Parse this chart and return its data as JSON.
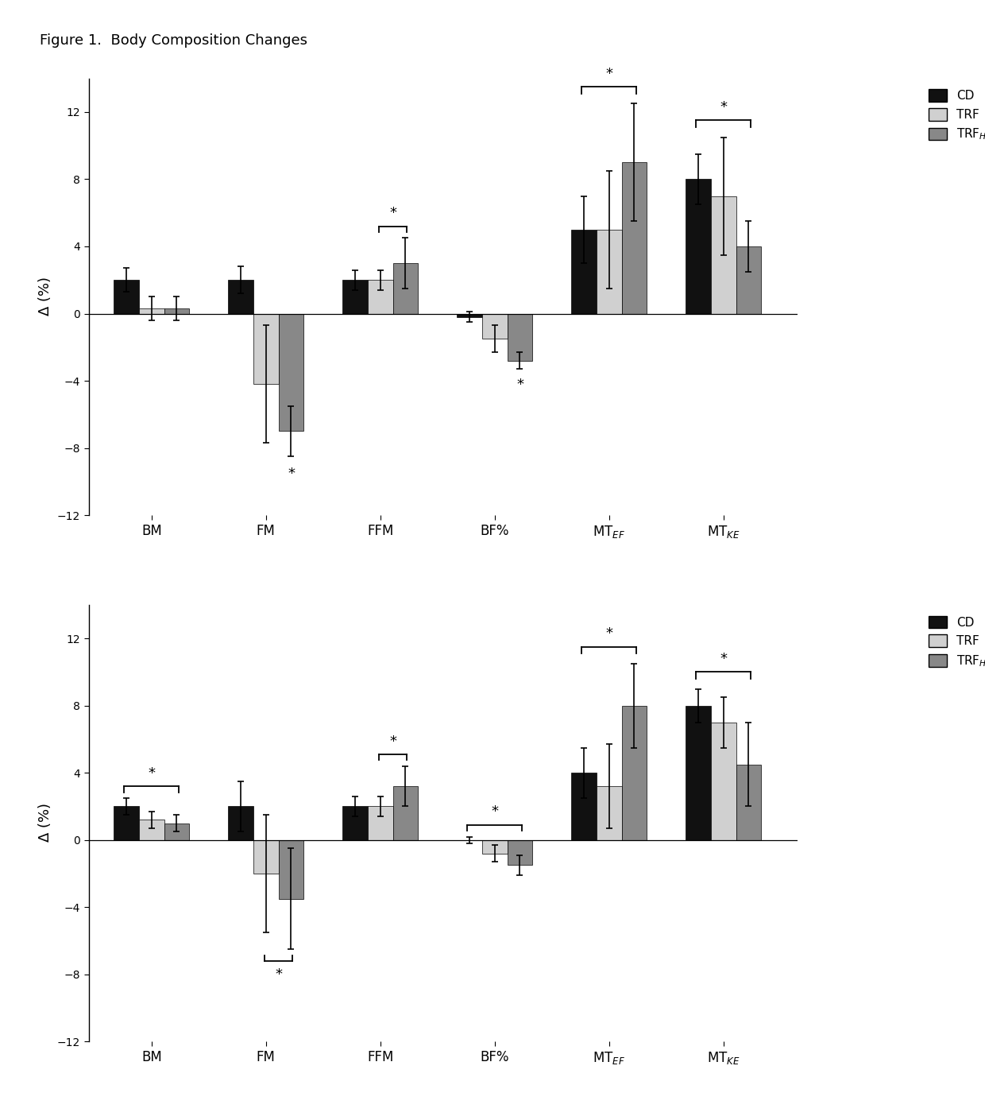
{
  "title": "Figure 1.  Body Composition Changes",
  "top": {
    "CD_vals": [
      2.0,
      2.0,
      2.0,
      -0.2,
      5.0,
      8.0
    ],
    "TRF_vals": [
      0.3,
      -4.2,
      2.0,
      -1.5,
      5.0,
      7.0
    ],
    "TRFHMB_vals": [
      0.3,
      -7.0,
      3.0,
      -2.8,
      9.0,
      4.0
    ],
    "CD_err": [
      0.7,
      0.8,
      0.6,
      0.3,
      2.0,
      1.5
    ],
    "TRF_err": [
      0.7,
      3.5,
      0.6,
      0.8,
      3.5,
      3.5
    ],
    "TRFHMB_err": [
      0.7,
      1.5,
      1.5,
      0.5,
      3.5,
      1.5
    ],
    "sig_star_fm_below": true,
    "sig_star_bf_below": true,
    "bracket_ffm_top": true,
    "bracket_mte_top": true,
    "bracket_mtke_top": true
  },
  "bottom": {
    "CD_vals": [
      2.0,
      2.0,
      2.0,
      0.0,
      4.0,
      8.0
    ],
    "TRF_vals": [
      1.2,
      -2.0,
      2.0,
      -0.8,
      3.2,
      7.0
    ],
    "TRFHMB_vals": [
      1.0,
      -3.5,
      3.2,
      -1.5,
      8.0,
      4.5
    ],
    "CD_err": [
      0.5,
      1.5,
      0.6,
      0.2,
      1.5,
      1.0
    ],
    "TRF_err": [
      0.5,
      3.5,
      0.6,
      0.5,
      2.5,
      1.5
    ],
    "TRFHMB_err": [
      0.5,
      3.0,
      1.2,
      0.6,
      2.5,
      2.5
    ],
    "bracket_bm_top": true,
    "bracket_fm_below": true,
    "bracket_ffm_top": true,
    "bracket_bf_top": true,
    "bracket_mte_top": true,
    "bracket_mtke_top": true
  },
  "colors": {
    "CD": "#111111",
    "TRF": "#d0d0d0",
    "TRFHMB": "#888888"
  },
  "ylim": [
    -12,
    14
  ],
  "yticks": [
    -12,
    -8,
    -4,
    0,
    4,
    8,
    12
  ],
  "cat_labels": [
    "BM",
    "FM",
    "FFM",
    "BF%",
    "MT$_{EF}$",
    "MT$_{KE}$"
  ]
}
